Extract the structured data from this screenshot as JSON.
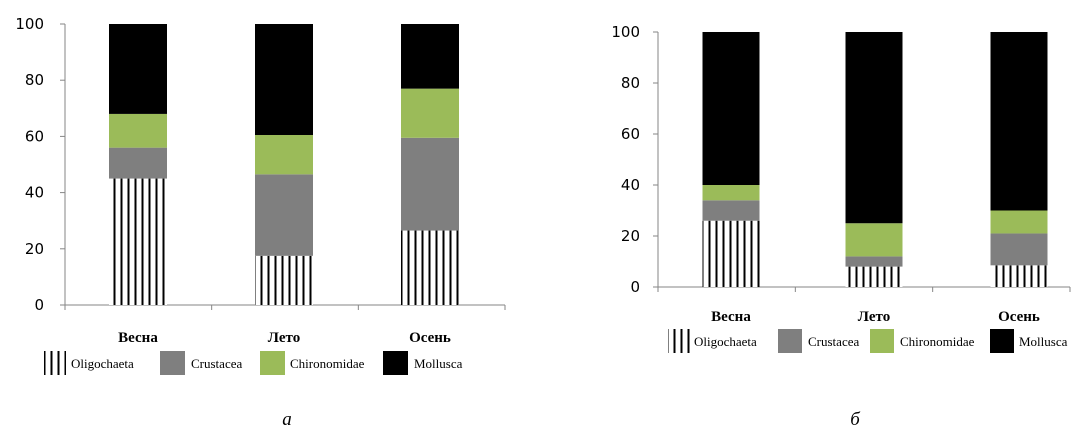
{
  "colors": {
    "Oligochaeta": "hatch-vertical-black",
    "Crustacea": "#7f7f7f",
    "Chironomidae": "#9bbb59",
    "Chironomidae_alt": "#92d050",
    "Mollusca": "#000000",
    "axis": "#868686"
  },
  "chart_data": [
    {
      "type": "bar",
      "stacked": true,
      "caption": "а",
      "categories": [
        "Весна",
        "Лето",
        "Осень"
      ],
      "series": [
        {
          "name": "Oligochaeta",
          "values": [
            45,
            17.5,
            26.5
          ]
        },
        {
          "name": "Crustacea",
          "values": [
            11,
            29,
            33
          ]
        },
        {
          "name": "Chironomidae",
          "values": [
            12,
            14,
            17.5
          ]
        },
        {
          "name": "Mollusca",
          "values": [
            32,
            39.5,
            23
          ]
        }
      ],
      "yticks": [
        "0",
        "20",
        "40",
        "60",
        "80",
        "100"
      ],
      "ylim": [
        0,
        100
      ],
      "grid": false,
      "legend": "bottom"
    },
    {
      "type": "bar",
      "stacked": true,
      "caption": "б",
      "categories": [
        "Весна",
        "Лето",
        "Осень"
      ],
      "series": [
        {
          "name": "Oligochaeta",
          "values": [
            26,
            8,
            8.5
          ]
        },
        {
          "name": "Crustacea",
          "values": [
            8,
            4,
            12.5
          ]
        },
        {
          "name": "Chironomidae",
          "values": [
            6,
            13,
            9
          ]
        },
        {
          "name": "Mollusca",
          "values": [
            60,
            75,
            70
          ]
        }
      ],
      "yticks": [
        "0",
        "20",
        "40",
        "60",
        "80",
        "100"
      ],
      "ylim": [
        0,
        100
      ],
      "grid": false,
      "legend": "bottom"
    }
  ]
}
